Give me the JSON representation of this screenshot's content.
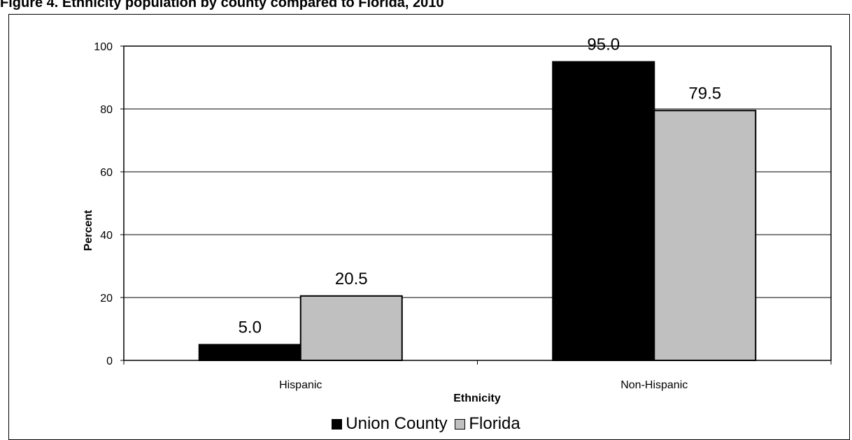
{
  "caption": "Figure 4. Ethnicity population by county compared to Florida, 2010",
  "chart_data": {
    "type": "bar",
    "title": "",
    "xlabel": "Ethnicity",
    "ylabel": "Percent",
    "categories": [
      "Hispanic",
      "Non-Hispanic"
    ],
    "ylim": [
      0,
      100
    ],
    "yticks": [
      0,
      20,
      40,
      60,
      80,
      100
    ],
    "grid": true,
    "legend_position": "bottom",
    "series": [
      {
        "name": "Union County",
        "values": [
          5.0,
          95.0
        ],
        "labels": [
          "5.0",
          "95.0"
        ],
        "color": "#000000"
      },
      {
        "name": "Florida",
        "values": [
          20.5,
          79.5
        ],
        "labels": [
          "20.5",
          "79.5"
        ],
        "color": "#c0c0c0"
      }
    ]
  }
}
